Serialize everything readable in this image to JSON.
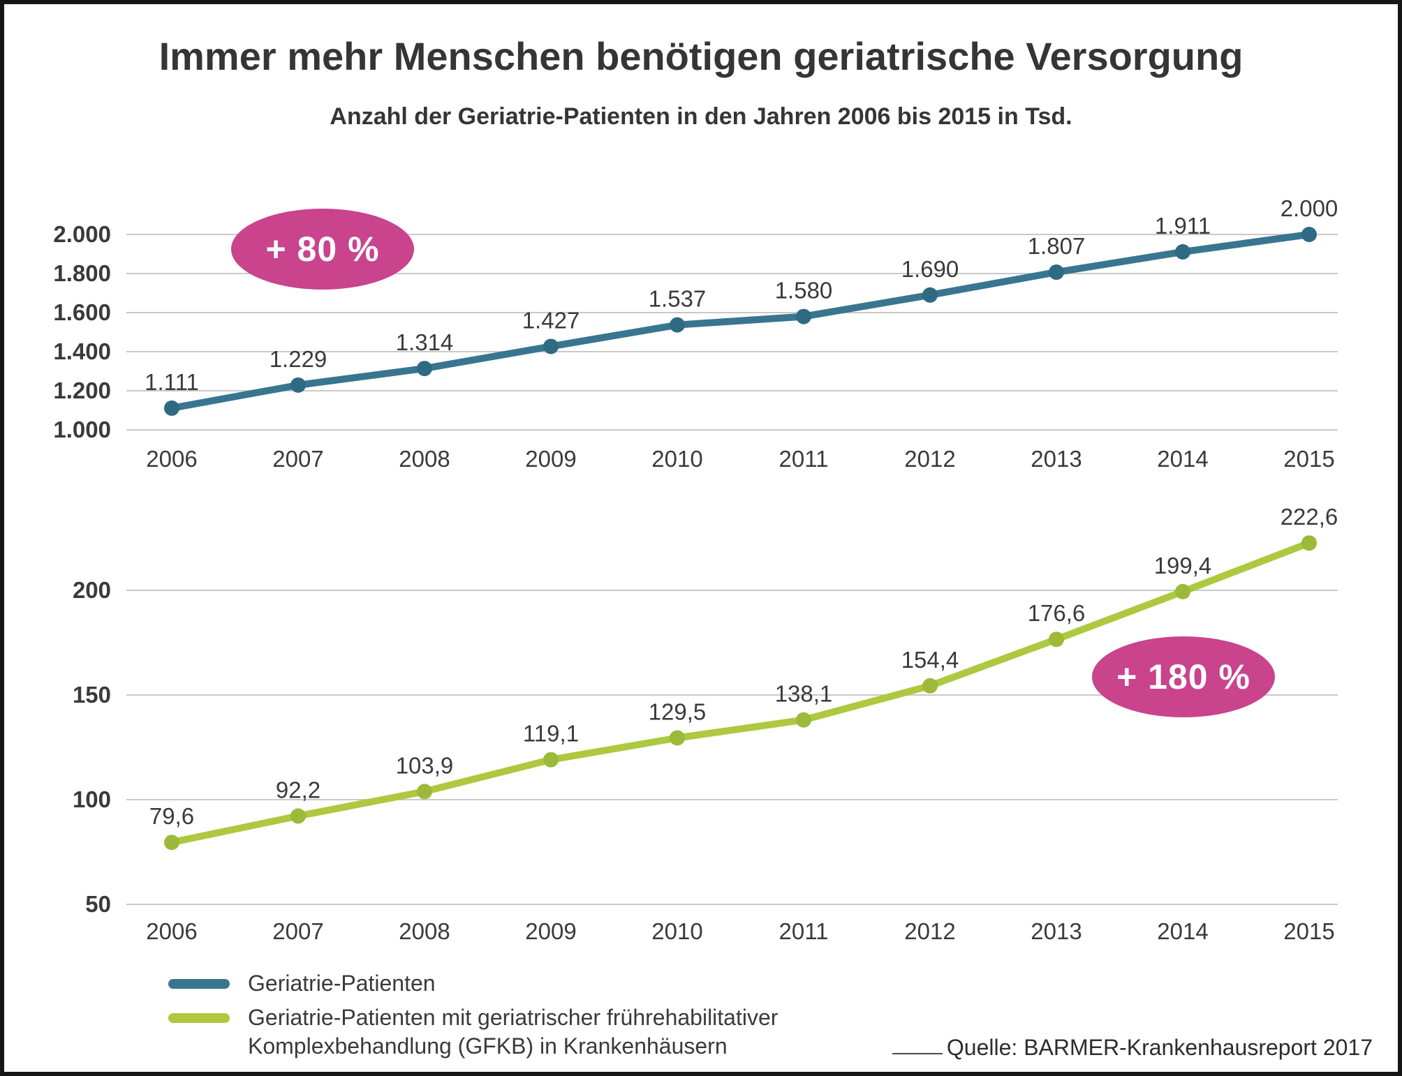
{
  "title": "Immer mehr Menschen benötigen geriatrische Versorgung",
  "subtitle": "Anzahl der Geriatrie-Patienten in den Jahren 2006 bis 2015 in Tsd.",
  "source": "Quelle: BARMER-Krankenhausreport 2017",
  "colors": {
    "teal": "#3a7590",
    "teal_point": "#2e6a82",
    "green": "#aec83f",
    "green_point": "#9cb93a",
    "pink": "#c9438d",
    "grid": "#c9c9c9",
    "text": "#3a3a3a"
  },
  "legend": [
    {
      "label": "Geriatrie-Patienten",
      "color": "#3a7590"
    },
    {
      "label": "Geriatrie-Patienten mit geriatrischer frührehabilitativer\nKomplexbehandlung (GFKB) in Krankenhäusern",
      "color": "#aec83f"
    }
  ],
  "chart_data": [
    {
      "type": "line",
      "name": "Geriatrie-Patienten",
      "unit": "Tsd.",
      "categories": [
        "2006",
        "2007",
        "2008",
        "2009",
        "2010",
        "2011",
        "2012",
        "2013",
        "2014",
        "2015"
      ],
      "values": [
        1111,
        1229,
        1314,
        1427,
        1537,
        1580,
        1690,
        1807,
        1911,
        2000
      ],
      "value_labels": [
        "1.111",
        "1.229",
        "1.314",
        "1.427",
        "1.537",
        "1.580",
        "1.690",
        "1.807",
        "1.911",
        "2.000"
      ],
      "ylim": [
        1000,
        2100
      ],
      "yticks": [
        {
          "value": 2000,
          "label": "2.000"
        },
        {
          "value": 1800,
          "label": "1.800"
        },
        {
          "value": 1600,
          "label": "1.600"
        },
        {
          "value": 1400,
          "label": "1.400"
        },
        {
          "value": 1200,
          "label": "1.200"
        },
        {
          "value": 1000,
          "label": "1.000"
        }
      ],
      "grid": true,
      "color": "#3a7590",
      "point_color": "#2e6a82",
      "annotation": "+ 80 %"
    },
    {
      "type": "line",
      "name": "Geriatrie-Patienten mit geriatrischer frührehabilitativer Komplexbehandlung (GFKB) in Krankenhäusern",
      "unit": "Tsd.",
      "categories": [
        "2006",
        "2007",
        "2008",
        "2009",
        "2010",
        "2011",
        "2012",
        "2013",
        "2014",
        "2015"
      ],
      "values": [
        79.6,
        92.2,
        103.9,
        119.1,
        129.5,
        138.1,
        154.4,
        176.6,
        199.4,
        222.6
      ],
      "value_labels": [
        "79,6",
        "92,2",
        "103,9",
        "119,1",
        "129,5",
        "138,1",
        "154,4",
        "176,6",
        "199,4",
        "222,6"
      ],
      "ylim": [
        50,
        240
      ],
      "yticks": [
        {
          "value": 200,
          "label": "200"
        },
        {
          "value": 150,
          "label": "150"
        },
        {
          "value": 100,
          "label": "100"
        },
        {
          "value": 50,
          "label": "50"
        }
      ],
      "grid": true,
      "color": "#aec83f",
      "point_color": "#9cb93a",
      "annotation": "+ 180 %"
    }
  ],
  "legend_position": "bottom-left"
}
